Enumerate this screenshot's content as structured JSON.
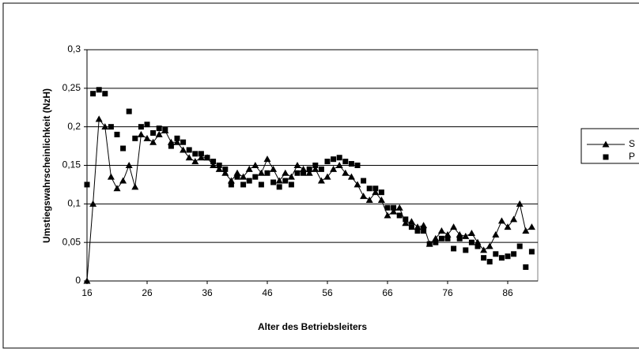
{
  "chart_data": {
    "type": "line",
    "xlabel": "Alter des Betriebsleiters",
    "ylabel": "Umstiegswahrscheinlichkeit (NzH)",
    "x": [
      16,
      17,
      18,
      19,
      20,
      21,
      22,
      23,
      24,
      25,
      26,
      27,
      28,
      29,
      30,
      31,
      32,
      33,
      34,
      35,
      36,
      37,
      38,
      39,
      40,
      41,
      42,
      43,
      44,
      45,
      46,
      47,
      48,
      49,
      50,
      51,
      52,
      53,
      54,
      55,
      56,
      57,
      58,
      59,
      60,
      61,
      62,
      63,
      64,
      65,
      66,
      67,
      68,
      69,
      70,
      71,
      72,
      73,
      74,
      75,
      76,
      77,
      78,
      79,
      80,
      81,
      82,
      83,
      84,
      85,
      86,
      87,
      88,
      89,
      90
    ],
    "series": [
      {
        "name": "S",
        "color": "#000000",
        "marker": "triangle",
        "line": true,
        "values": [
          0,
          0.1,
          0.21,
          0.2,
          0.135,
          0.12,
          0.13,
          0.15,
          0.122,
          0.19,
          0.185,
          0.18,
          0.19,
          0.195,
          0.18,
          0.18,
          0.17,
          0.16,
          0.155,
          0.16,
          0.16,
          0.15,
          0.145,
          0.14,
          0.13,
          0.14,
          0.135,
          0.145,
          0.15,
          0.14,
          0.158,
          0.145,
          0.13,
          0.14,
          0.135,
          0.15,
          0.145,
          0.14,
          0.145,
          0.13,
          0.135,
          0.145,
          0.15,
          0.14,
          0.135,
          0.125,
          0.11,
          0.105,
          0.115,
          0.105,
          0.085,
          0.09,
          0.095,
          0.075,
          0.077,
          0.07,
          0.072,
          0.048,
          0.055,
          0.065,
          0.06,
          0.07,
          0.06,
          0.058,
          0.062,
          0.05,
          0.04,
          0.045,
          0.06,
          0.078,
          0.07,
          0.08,
          0.1,
          0.065,
          0.07
        ]
      },
      {
        "name": "P",
        "color": "#000000",
        "marker": "square",
        "line": false,
        "values": [
          0.125,
          0.243,
          0.248,
          0.243,
          0.2,
          0.19,
          0.172,
          0.22,
          0.185,
          0.2,
          0.203,
          0.192,
          0.198,
          0.196,
          0.175,
          0.185,
          0.18,
          0.17,
          0.165,
          0.165,
          0.16,
          0.155,
          0.15,
          0.145,
          0.125,
          0.135,
          0.125,
          0.13,
          0.135,
          0.125,
          0.14,
          0.128,
          0.122,
          0.13,
          0.125,
          0.14,
          0.14,
          0.145,
          0.15,
          0.145,
          0.155,
          0.158,
          0.16,
          0.155,
          0.152,
          0.15,
          0.13,
          0.12,
          0.12,
          0.115,
          0.095,
          0.095,
          0.085,
          0.08,
          0.07,
          0.065,
          0.065,
          0.048,
          0.05,
          0.055,
          0.055,
          0.042,
          0.055,
          0.04,
          0.05,
          0.045,
          0.03,
          0.025,
          0.035,
          0.03,
          0.032,
          0.035,
          0.045,
          0.018,
          0.038
        ]
      }
    ],
    "xlim": [
      16,
      91
    ],
    "xticks": [
      16,
      26,
      36,
      46,
      56,
      66,
      76,
      86
    ],
    "ylim": [
      0,
      0.3
    ],
    "yticks": [
      0,
      {
        "value": 0.05,
        "label": "0,05"
      },
      {
        "value": 0.1,
        "label": "0,1"
      },
      {
        "value": 0.15,
        "label": "0,15"
      },
      {
        "value": 0.2,
        "label": "0,2"
      },
      {
        "value": 0.25,
        "label": "0,25"
      },
      {
        "value": 0.3,
        "label": "0,3"
      }
    ],
    "grid": true,
    "legend": "right"
  }
}
